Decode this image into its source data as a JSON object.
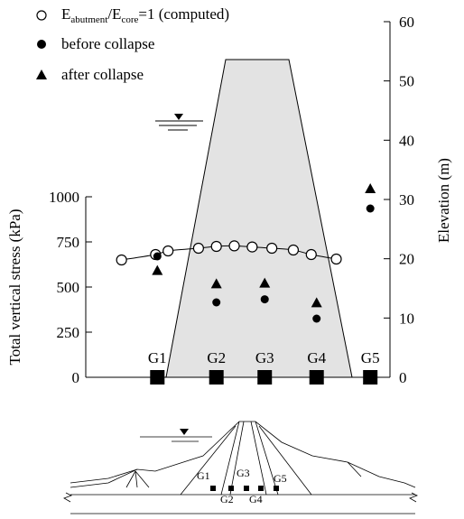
{
  "chart_data": {
    "type": "scatter",
    "legend": [
      {
        "key": "computed",
        "label": "E",
        "sub1": "abutment",
        "mid": "/E",
        "sub2": "core",
        "tail": "=1 (computed)"
      },
      {
        "key": "before",
        "label": "before collapse"
      },
      {
        "key": "after",
        "label": "after collapse"
      }
    ],
    "legend_position": "top-left",
    "ylabel_left": "Total vertical stress (kPa)",
    "ylabel_right": "Elevation (m)",
    "left_ticks": [
      "0",
      "250",
      "500",
      "750",
      "1000"
    ],
    "right_ticks": [
      "0",
      "10",
      "20",
      "30",
      "40",
      "50",
      "60"
    ],
    "ylim_left": [
      0,
      1000
    ],
    "ylim_right": [
      0,
      60
    ],
    "gauges": [
      "G1",
      "G2",
      "G3",
      "G4",
      "G5"
    ],
    "computed_x": [
      -4.0,
      -2.1,
      -1.4,
      0.3,
      1.3,
      2.3,
      3.3,
      4.4,
      5.6,
      6.6,
      8.0
    ],
    "computed_y": [
      650,
      680,
      700,
      715,
      725,
      728,
      722,
      715,
      705,
      680,
      655
    ],
    "gauge_x": [
      -2.0,
      1.3,
      4.0,
      6.9,
      9.9
    ],
    "before_collapse": [
      670,
      415,
      432,
      325,
      935
    ],
    "after_collapse": [
      592,
      518,
      522,
      413,
      1045
    ],
    "grid": false
  },
  "section": {
    "labels_top": [
      "G1",
      "G3",
      "G5"
    ],
    "labels_bottom": [
      "G2",
      "G4"
    ]
  }
}
